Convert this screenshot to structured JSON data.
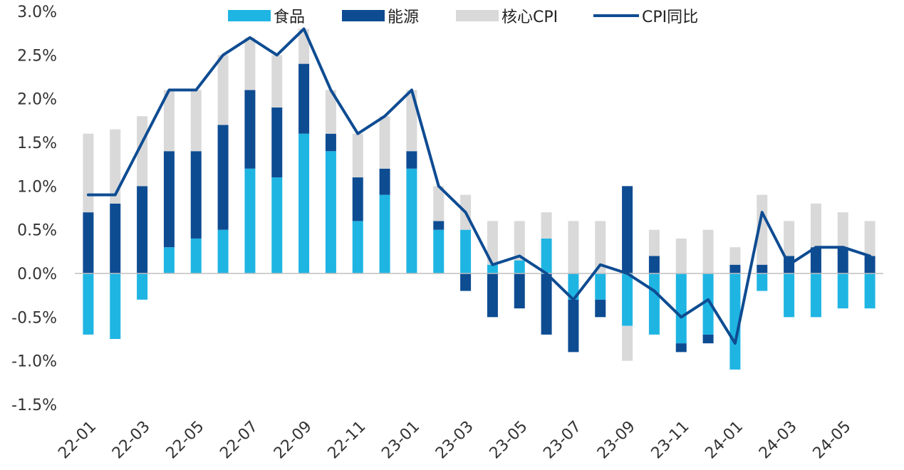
{
  "chart_data": {
    "type": "bar",
    "stacked": true,
    "title": "",
    "xlabel": "",
    "ylabel": "",
    "ylim": [
      -1.5,
      3.0
    ],
    "y_ticks": [
      3.0,
      2.5,
      2.0,
      1.5,
      1.0,
      0.5,
      0.0,
      -0.5,
      -1.0,
      -1.5
    ],
    "y_tick_labels": [
      "3.0%",
      "2.5%",
      "2.0%",
      "1.5%",
      "1.0%",
      "0.5%",
      "0.0%",
      "-0.5%",
      "-1.0%",
      "-1.5%"
    ],
    "categories": [
      "22-01",
      "22-02",
      "22-03",
      "22-04",
      "22-05",
      "22-06",
      "22-07",
      "22-08",
      "22-09",
      "22-10",
      "22-11",
      "22-12",
      "23-01",
      "23-02",
      "23-03",
      "23-04",
      "23-05",
      "23-06",
      "23-07",
      "23-08",
      "23-09",
      "23-10",
      "23-11",
      "23-12",
      "24-01",
      "24-02",
      "24-03",
      "24-04",
      "24-05",
      "24-06"
    ],
    "x_tick_labels": [
      "22-01",
      "22-03",
      "22-05",
      "22-07",
      "22-09",
      "22-11",
      "23-01",
      "23-03",
      "23-05",
      "23-07",
      "23-09",
      "23-11",
      "24-01",
      "24-03",
      "24-05"
    ],
    "x_tick_indices": [
      0,
      2,
      4,
      6,
      8,
      10,
      12,
      14,
      16,
      18,
      20,
      22,
      24,
      26,
      28
    ],
    "legend_position": "top",
    "series": [
      {
        "name": "食品",
        "kind": "bar",
        "color": "#1fb5e3",
        "values": [
          -0.7,
          -0.75,
          -0.3,
          0.3,
          0.4,
          0.5,
          1.2,
          1.1,
          1.6,
          1.4,
          0.6,
          0.9,
          1.2,
          0.5,
          0.5,
          0.1,
          0.15,
          0.4,
          -0.3,
          -0.3,
          -0.6,
          -0.7,
          -0.8,
          -0.7,
          -1.1,
          -0.2,
          -0.5,
          -0.5,
          -0.4,
          -0.4
        ]
      },
      {
        "name": "能源",
        "kind": "bar",
        "color": "#0e4c92",
        "values": [
          0.7,
          0.8,
          1.0,
          1.1,
          1.0,
          1.2,
          0.9,
          0.8,
          0.8,
          0.2,
          0.5,
          0.3,
          0.2,
          0.1,
          -0.2,
          -0.5,
          -0.4,
          -0.7,
          -0.6,
          -0.2,
          1.0,
          0.2,
          -0.1,
          -0.1,
          0.1,
          0.1,
          0.2,
          0.3,
          0.3,
          0.2
        ]
      },
      {
        "name": "核心CPI",
        "kind": "bar",
        "color": "#d9d9d9",
        "values": [
          0.9,
          0.85,
          0.8,
          0.7,
          0.7,
          0.8,
          0.6,
          0.6,
          0.4,
          0.5,
          0.5,
          0.6,
          0.7,
          0.4,
          0.4,
          0.5,
          0.45,
          0.3,
          0.6,
          0.6,
          -0.4,
          0.3,
          0.4,
          0.5,
          0.2,
          0.8,
          0.4,
          0.5,
          0.4,
          0.4
        ]
      },
      {
        "name": "CPI同比",
        "kind": "line",
        "color": "#0e4c92",
        "values": [
          0.9,
          0.9,
          1.5,
          2.1,
          2.1,
          2.5,
          2.7,
          2.5,
          2.8,
          2.1,
          1.6,
          1.8,
          2.1,
          1.0,
          0.7,
          0.1,
          0.2,
          0.0,
          -0.3,
          0.1,
          0.0,
          -0.2,
          -0.5,
          -0.3,
          -0.8,
          0.7,
          0.1,
          0.3,
          0.3,
          0.2
        ]
      }
    ]
  }
}
